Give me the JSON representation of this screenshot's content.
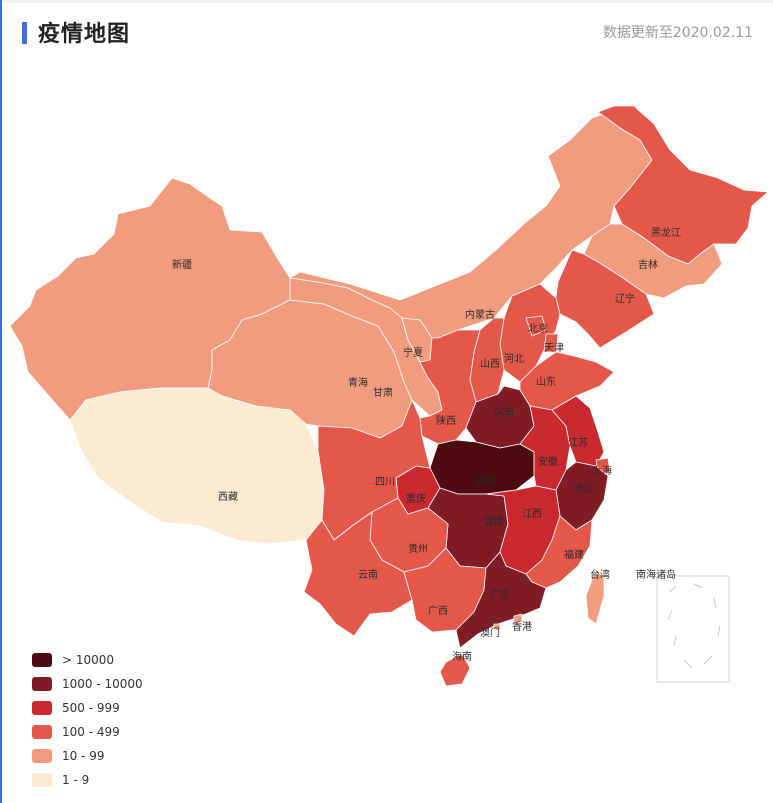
{
  "header": {
    "title": "疫情地图",
    "updated": "数据更新至2020.02.11"
  },
  "legend": [
    {
      "label": "> 10000",
      "color": "#4d0b11"
    },
    {
      "label": "1000 - 10000",
      "color": "#801c25"
    },
    {
      "label": "500 - 999",
      "color": "#c9292f"
    },
    {
      "label": "100 - 499",
      "color": "#e4584a"
    },
    {
      "label": "10 - 99",
      "color": "#f29c7f"
    },
    {
      "label": "1 - 9",
      "color": "#fcebd2"
    }
  ],
  "provinces": [
    {
      "name": "新疆",
      "bin": 4
    },
    {
      "name": "西藏",
      "bin": 5
    },
    {
      "name": "青海",
      "bin": 4
    },
    {
      "name": "甘肃",
      "bin": 4
    },
    {
      "name": "内蒙古",
      "bin": 4
    },
    {
      "name": "宁夏",
      "bin": 4
    },
    {
      "name": "黑龙江",
      "bin": 3
    },
    {
      "name": "吉林",
      "bin": 4
    },
    {
      "name": "辽宁",
      "bin": 3
    },
    {
      "name": "北京",
      "bin": 3
    },
    {
      "name": "天津",
      "bin": 3
    },
    {
      "name": "河北",
      "bin": 3
    },
    {
      "name": "山西",
      "bin": 3
    },
    {
      "name": "山东",
      "bin": 3
    },
    {
      "name": "陕西",
      "bin": 3
    },
    {
      "name": "河南",
      "bin": 1
    },
    {
      "name": "湖北",
      "bin": 0
    },
    {
      "name": "安徽",
      "bin": 2
    },
    {
      "name": "江苏",
      "bin": 2
    },
    {
      "name": "上海",
      "bin": 3
    },
    {
      "name": "浙江",
      "bin": 1
    },
    {
      "name": "四川",
      "bin": 3
    },
    {
      "name": "重庆",
      "bin": 2
    },
    {
      "name": "湖南",
      "bin": 1
    },
    {
      "name": "江西",
      "bin": 2
    },
    {
      "name": "福建",
      "bin": 3
    },
    {
      "name": "贵州",
      "bin": 3
    },
    {
      "name": "云南",
      "bin": 3
    },
    {
      "name": "广西",
      "bin": 3
    },
    {
      "name": "广东",
      "bin": 1
    },
    {
      "name": "海南",
      "bin": 3
    },
    {
      "name": "香港",
      "bin": 4
    },
    {
      "name": "澳门",
      "bin": 4
    },
    {
      "name": "台湾",
      "bin": 4
    }
  ],
  "inset_label": "南海诸岛"
}
